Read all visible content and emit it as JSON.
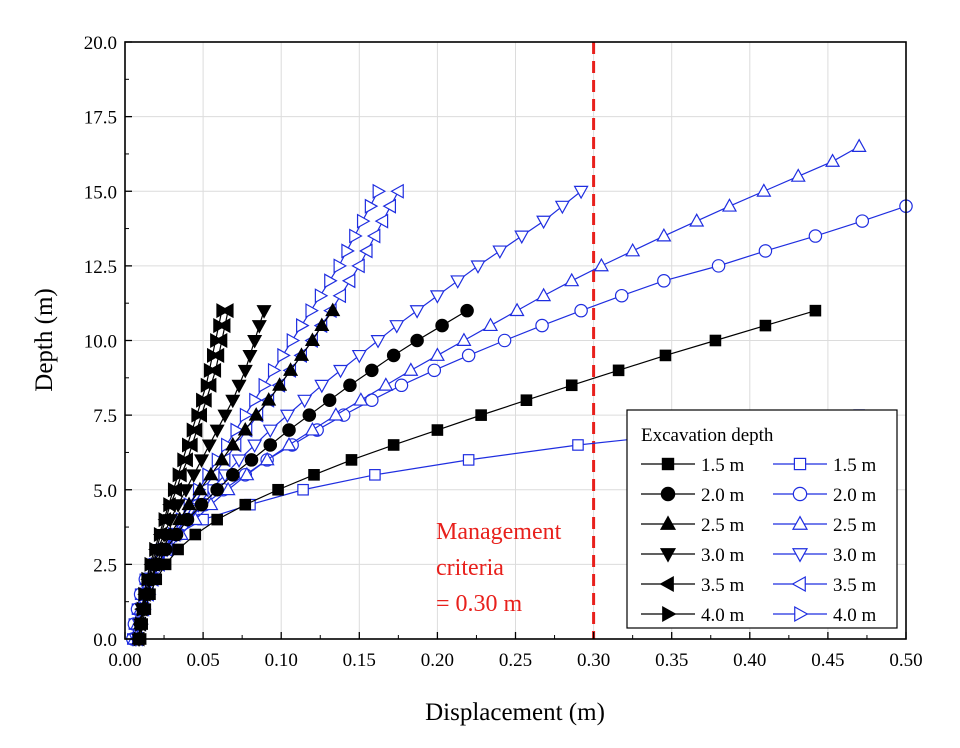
{
  "chart_data": {
    "type": "line",
    "xlabel": "Displacement (m)",
    "ylabel": "Depth (m)",
    "xlim": [
      0,
      0.5
    ],
    "ylim": [
      0,
      20
    ],
    "x_ticks": [
      "0.00",
      "0.05",
      "0.10",
      "0.15",
      "0.20",
      "0.25",
      "0.30",
      "0.35",
      "0.40",
      "0.45",
      "0.50"
    ],
    "y_ticks": [
      "0.0",
      "2.5",
      "5.0",
      "7.5",
      "10.0",
      "12.5",
      "15.0",
      "17.5",
      "20.0"
    ],
    "grid": true,
    "legend": {
      "title": "Excavation depth",
      "placement": "bottom-right",
      "columns": 2
    },
    "reference_line": {
      "x": 0.3,
      "color": "#e8201c",
      "style": "dashed"
    },
    "annotation": {
      "lines": [
        "Management",
        "criteria",
        "= 0.30 m"
      ],
      "color": "#e8201c"
    },
    "series_colors": {
      "filled": "#000000",
      "hollow": "#1f2ee0"
    },
    "series": [
      {
        "name": "1.5 m",
        "marker": "square",
        "fill": "filled",
        "x": [
          0.01,
          0.011,
          0.013,
          0.016,
          0.02,
          0.026,
          0.034,
          0.045,
          0.059,
          0.077,
          0.098,
          0.121,
          0.145,
          0.172,
          0.2,
          0.228,
          0.257,
          0.286,
          0.316,
          0.346,
          0.378,
          0.41,
          0.442
        ]
      },
      {
        "name": "2.0 m",
        "marker": "circle",
        "fill": "filled",
        "x": [
          0.009,
          0.01,
          0.012,
          0.014,
          0.017,
          0.021,
          0.026,
          0.033,
          0.04,
          0.049,
          0.059,
          0.069,
          0.081,
          0.093,
          0.105,
          0.118,
          0.131,
          0.144,
          0.158,
          0.172,
          0.187,
          0.203,
          0.219
        ]
      },
      {
        "name": "2.5 m",
        "marker": "triangle-up",
        "fill": "filled",
        "x": [
          0.009,
          0.01,
          0.012,
          0.014,
          0.017,
          0.02,
          0.024,
          0.029,
          0.035,
          0.041,
          0.048,
          0.055,
          0.062,
          0.069,
          0.077,
          0.084,
          0.092,
          0.099,
          0.106,
          0.113,
          0.12,
          0.126,
          0.133
        ]
      },
      {
        "name": "3.0 m",
        "marker": "triangle-down",
        "fill": "filled",
        "x": [
          0.009,
          0.01,
          0.011,
          0.013,
          0.015,
          0.018,
          0.021,
          0.025,
          0.029,
          0.034,
          0.039,
          0.044,
          0.049,
          0.054,
          0.059,
          0.064,
          0.069,
          0.073,
          0.077,
          0.08,
          0.083,
          0.086,
          0.089
        ]
      },
      {
        "name": "3.5 m",
        "marker": "triangle-left",
        "fill": "filled",
        "x": [
          0.009,
          0.01,
          0.011,
          0.013,
          0.015,
          0.017,
          0.02,
          0.023,
          0.026,
          0.029,
          0.033,
          0.036,
          0.04,
          0.043,
          0.046,
          0.049,
          0.052,
          0.055,
          0.058,
          0.06,
          0.062,
          0.064,
          0.066
        ]
      },
      {
        "name": "4.0 m",
        "marker": "triangle-right",
        "fill": "filled",
        "x": [
          0.009,
          0.01,
          0.011,
          0.012,
          0.014,
          0.016,
          0.019,
          0.022,
          0.025,
          0.028,
          0.031,
          0.034,
          0.037,
          0.04,
          0.043,
          0.046,
          0.049,
          0.052,
          0.054,
          0.056,
          0.058,
          0.06,
          0.062
        ]
      },
      {
        "name": "1.5 m",
        "marker": "square",
        "fill": "hollow",
        "x": [
          0.005,
          0.006,
          0.008,
          0.01,
          0.013,
          0.017,
          0.023,
          0.033,
          0.05,
          0.08,
          0.114,
          0.16,
          0.22,
          0.29,
          0.38,
          0.47
        ]
      },
      {
        "name": "2.0 m",
        "marker": "circle",
        "fill": "hollow",
        "x": [
          0.005,
          0.006,
          0.008,
          0.01,
          0.013,
          0.017,
          0.023,
          0.03,
          0.04,
          0.051,
          0.063,
          0.077,
          0.091,
          0.107,
          0.123,
          0.14,
          0.158,
          0.177,
          0.198,
          0.22,
          0.243,
          0.267,
          0.292,
          0.318,
          0.345,
          0.38,
          0.41,
          0.442,
          0.472,
          0.5
        ]
      },
      {
        "name": "2.5 m",
        "marker": "triangle-up",
        "fill": "hollow",
        "x": [
          0.006,
          0.008,
          0.01,
          0.013,
          0.017,
          0.022,
          0.028,
          0.036,
          0.045,
          0.055,
          0.066,
          0.078,
          0.091,
          0.105,
          0.12,
          0.135,
          0.151,
          0.167,
          0.183,
          0.2,
          0.217,
          0.234,
          0.251,
          0.268,
          0.286,
          0.305,
          0.325,
          0.345,
          0.366,
          0.387,
          0.409,
          0.431,
          0.453,
          0.47
        ]
      },
      {
        "name": "3.0 m",
        "marker": "triangle-down",
        "fill": "hollow",
        "x": [
          0.007,
          0.009,
          0.011,
          0.014,
          0.018,
          0.022,
          0.027,
          0.033,
          0.04,
          0.047,
          0.055,
          0.064,
          0.073,
          0.083,
          0.093,
          0.104,
          0.115,
          0.126,
          0.138,
          0.15,
          0.162,
          0.174,
          0.187,
          0.2,
          0.213,
          0.226,
          0.24,
          0.254,
          0.268,
          0.28,
          0.292
        ]
      },
      {
        "name": "3.5 m",
        "marker": "triangle-left",
        "fill": "hollow",
        "x": [
          0.008,
          0.01,
          0.012,
          0.015,
          0.018,
          0.022,
          0.027,
          0.032,
          0.038,
          0.044,
          0.05,
          0.057,
          0.064,
          0.071,
          0.078,
          0.085,
          0.092,
          0.099,
          0.106,
          0.113,
          0.12,
          0.126,
          0.132,
          0.138,
          0.144,
          0.15,
          0.155,
          0.16,
          0.165,
          0.17,
          0.175
        ]
      },
      {
        "name": "4.0 m",
        "marker": "triangle-right",
        "fill": "hollow",
        "x": [
          0.008,
          0.01,
          0.012,
          0.015,
          0.018,
          0.022,
          0.026,
          0.031,
          0.036,
          0.041,
          0.047,
          0.053,
          0.059,
          0.065,
          0.071,
          0.077,
          0.083,
          0.089,
          0.095,
          0.101,
          0.107,
          0.113,
          0.119,
          0.125,
          0.131,
          0.137,
          0.142,
          0.147,
          0.152,
          0.157,
          0.162
        ]
      }
    ]
  }
}
